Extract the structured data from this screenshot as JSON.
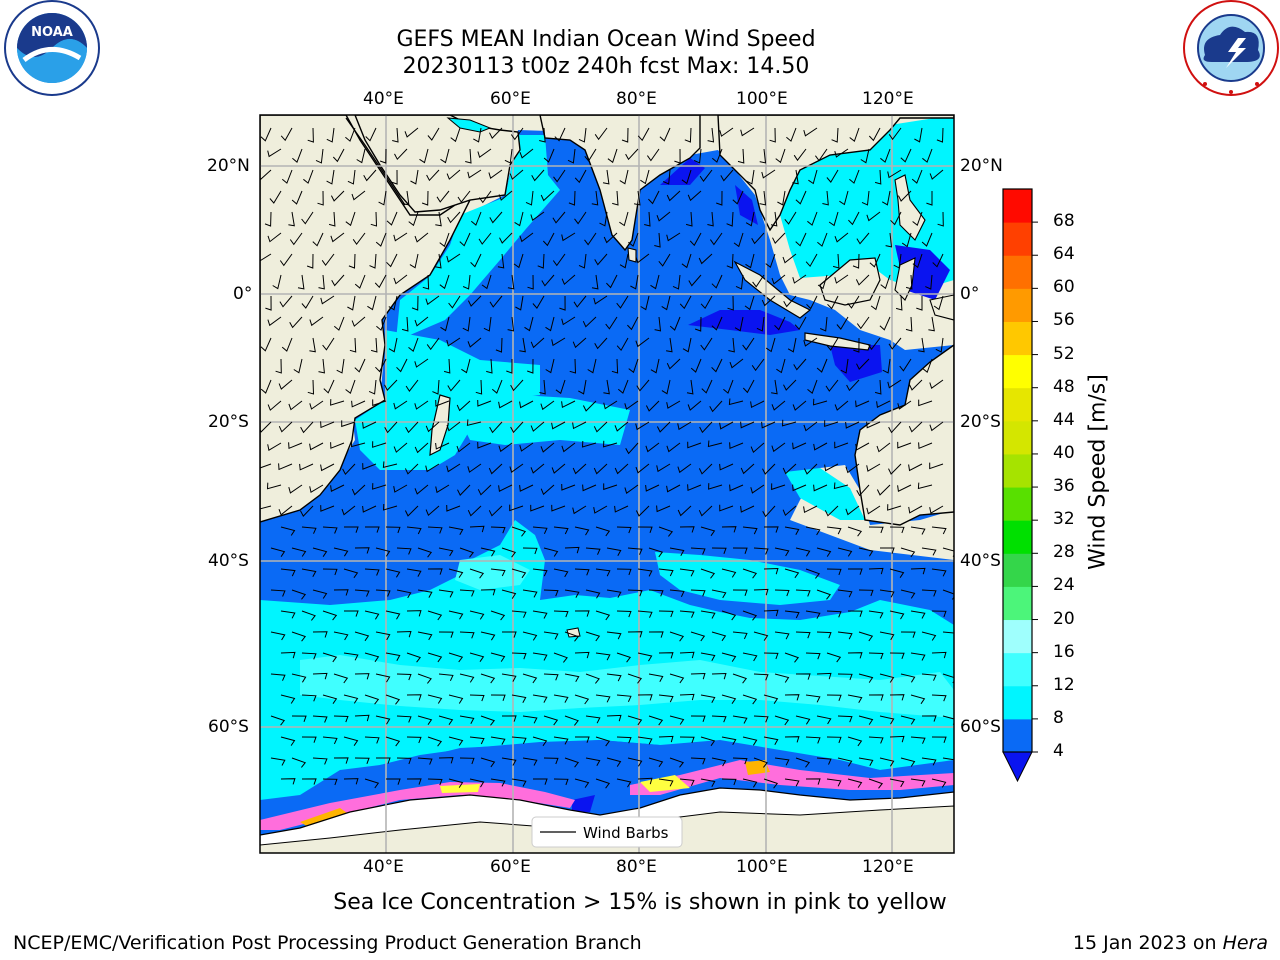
{
  "header": {
    "title_line1": "GEFS MEAN Indian Ocean Wind Speed",
    "title_line2": "20230113 t00z 240h fcst   Max: 14.50"
  },
  "logos": {
    "left": {
      "text": "NOAA",
      "ring_text": "NATIONAL OCEANIC AND ATMOSPHERIC ADMINISTRATION · U.S. DEPARTMENT OF COMMERCE"
    },
    "right": {
      "ring_text": "NATIONAL WEATHER SERVICE"
    }
  },
  "map": {
    "lon_labels": [
      "40°E",
      "60°E",
      "80°E",
      "100°E",
      "120°E"
    ],
    "lat_labels": [
      "20°N",
      "0°",
      "20°S",
      "40°S",
      "60°S"
    ],
    "legend_label": "Wind Barbs"
  },
  "colorbar": {
    "label": "Wind Speed [m/s]",
    "ticks": [
      "4",
      "8",
      "12",
      "16",
      "20",
      "24",
      "28",
      "32",
      "36",
      "40",
      "44",
      "48",
      "52",
      "56",
      "60",
      "64",
      "68"
    ],
    "colors": [
      "#0a6af5",
      "#00f5ff",
      "#40ffff",
      "#9ffffd",
      "#4cf57a",
      "#34d64a",
      "#00e000",
      "#58e000",
      "#a6e300",
      "#d4e600",
      "#e6e600",
      "#ffff00",
      "#ffc800",
      "#ff9a00",
      "#ff7000",
      "#ff4000",
      "#ff0a00"
    ],
    "under_color": "#0a14f0"
  },
  "footer": {
    "note": "Sea Ice Concentration > 15% is shown in pink to yellow",
    "credit": "NCEP/EMC/Verification Post Processing Product Generation Branch",
    "date": "15 Jan 2023 on ",
    "host": "Hera"
  }
}
